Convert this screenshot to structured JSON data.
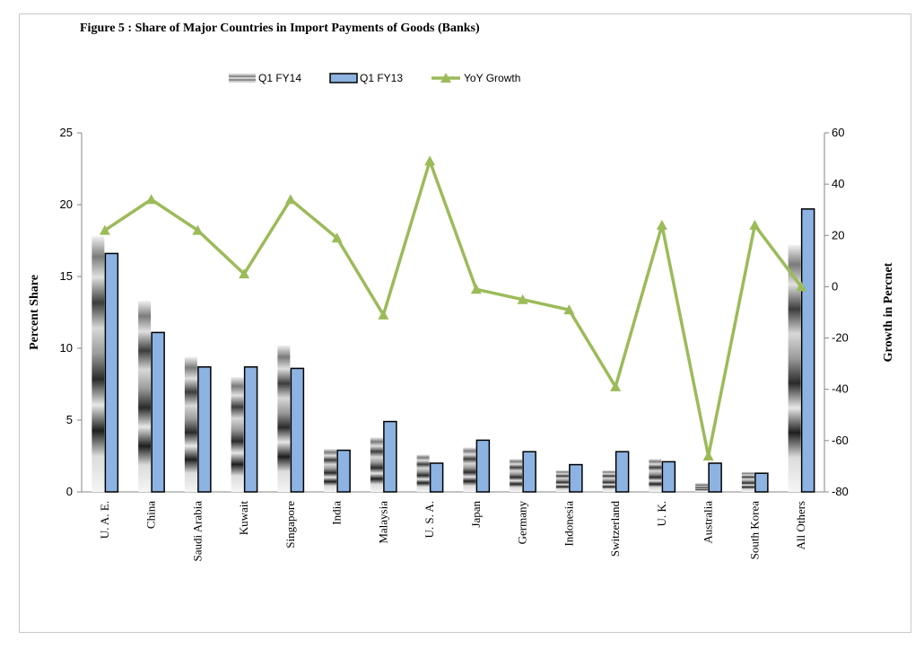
{
  "chart_data": {
    "type": "bar",
    "title": "Figure  5 :  Share of Major Countries in Import Payments of Goods (Banks)",
    "categories": [
      "U. A. E.",
      "China",
      "Saudi Arabia",
      "Kuwait",
      "Singapore",
      "India",
      "Malaysia",
      "U. S. A.",
      "Japan",
      "Germany",
      "Indonesia",
      "Switzerland",
      "U. K.",
      "Australia",
      "South Korea",
      "All Others"
    ],
    "series": [
      {
        "name": "Q1 FY14",
        "kind": "bar",
        "axis": "left",
        "values": [
          17.8,
          13.3,
          9.4,
          8.0,
          10.2,
          3.0,
          3.8,
          2.6,
          3.1,
          2.3,
          1.5,
          1.5,
          2.3,
          0.6,
          1.4,
          17.2
        ]
      },
      {
        "name": "Q1 FY13",
        "kind": "bar",
        "axis": "left",
        "values": [
          16.6,
          11.1,
          8.7,
          8.7,
          8.6,
          2.9,
          4.9,
          2.0,
          3.6,
          2.8,
          1.9,
          2.8,
          2.1,
          2.0,
          1.3,
          19.7
        ]
      },
      {
        "name": "YoY Growth",
        "kind": "line",
        "axis": "right",
        "values": [
          22,
          34,
          22,
          5,
          34,
          19,
          -11,
          49,
          -1,
          -5,
          -9,
          -39,
          24,
          -66,
          24,
          0
        ]
      }
    ],
    "ylabel": "Percent Share",
    "y2label": "Growth in Percnet",
    "ylim": [
      0,
      25
    ],
    "y2lim": [
      -80,
      60
    ],
    "yticks": [
      0,
      5,
      10,
      15,
      20,
      25
    ],
    "y2ticks": [
      -80,
      -60,
      -40,
      -20,
      0,
      20,
      40,
      60
    ],
    "legend_position": "top",
    "colors": {
      "q1fy13": "#8db3e2",
      "line": "#9bbb59",
      "border": "#000000"
    }
  }
}
